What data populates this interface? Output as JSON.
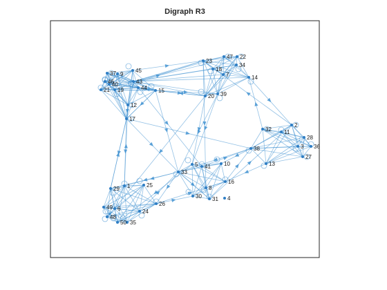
{
  "window": {
    "title": "Digraph R3"
  },
  "colors": {
    "edge": "#3B8ED0",
    "node": "#2F7EC4",
    "axes": "#262626",
    "background": "#ffffff"
  },
  "chart_data": {
    "type": "digraph",
    "title": "Digraph R3",
    "xlabel": "",
    "ylabel": "",
    "grid": false,
    "legend": "none",
    "nodes": [
      "1",
      "2",
      "3",
      "4",
      "5",
      "6",
      "7",
      "8",
      "9",
      "10",
      "11",
      "12",
      "13",
      "14",
      "15",
      "16",
      "17",
      "18",
      "19",
      "20",
      "21",
      "22",
      "23",
      "24",
      "25",
      "26",
      "27",
      "28",
      "29",
      "30",
      "31",
      "32",
      "33",
      "34",
      "35",
      "36",
      "37",
      "38",
      "39",
      "40",
      "41",
      "42",
      "43",
      "44",
      "45",
      "46",
      "47",
      "48",
      "49",
      "50"
    ],
    "clusters": [
      [
        "45",
        "37",
        "9",
        "46",
        "43",
        "40",
        "44",
        "21",
        "19",
        "12",
        "17",
        "15"
      ],
      [
        "23",
        "47",
        "22",
        "18",
        "34",
        "7",
        "14",
        "39",
        "20",
        "43"
      ],
      [
        "2",
        "32",
        "11",
        "28",
        "36",
        "3",
        "38",
        "13",
        "27"
      ],
      [
        "1",
        "29",
        "25",
        "49",
        "24",
        "48",
        "50",
        "35",
        "26",
        "6"
      ],
      [
        "33",
        "5",
        "41",
        "10",
        "16",
        "8",
        "30",
        "31"
      ]
    ],
    "edges": [
      [
        "15",
        "17"
      ],
      [
        "15",
        "44"
      ],
      [
        "15",
        "20"
      ],
      [
        "15",
        "33"
      ],
      [
        "17",
        "29"
      ],
      [
        "17",
        "1"
      ],
      [
        "17",
        "33"
      ],
      [
        "17",
        "38"
      ],
      [
        "19",
        "23"
      ],
      [
        "45",
        "23"
      ],
      [
        "20",
        "15"
      ],
      [
        "14",
        "2"
      ],
      [
        "39",
        "33"
      ],
      [
        "39",
        "5"
      ],
      [
        "20",
        "6"
      ],
      [
        "43",
        "41"
      ],
      [
        "23",
        "8"
      ],
      [
        "38",
        "33"
      ],
      [
        "38",
        "10"
      ],
      [
        "32",
        "14"
      ],
      [
        "13",
        "16"
      ],
      [
        "2",
        "23"
      ],
      [
        "41",
        "38"
      ],
      [
        "16",
        "38"
      ],
      [
        "33",
        "29"
      ],
      [
        "33",
        "1"
      ],
      [
        "26",
        "30"
      ],
      [
        "26",
        "16"
      ],
      [
        "24",
        "33"
      ],
      [
        "5",
        "50"
      ],
      [
        "29",
        "17"
      ],
      [
        "1",
        "12"
      ],
      [
        "48",
        "6"
      ],
      [
        "33",
        "26"
      ],
      [
        "20",
        "5"
      ],
      [
        "15",
        "39"
      ],
      [
        "12",
        "17"
      ],
      [
        "44",
        "15"
      ],
      [
        "33",
        "31"
      ],
      [
        "31",
        "2"
      ]
    ]
  }
}
